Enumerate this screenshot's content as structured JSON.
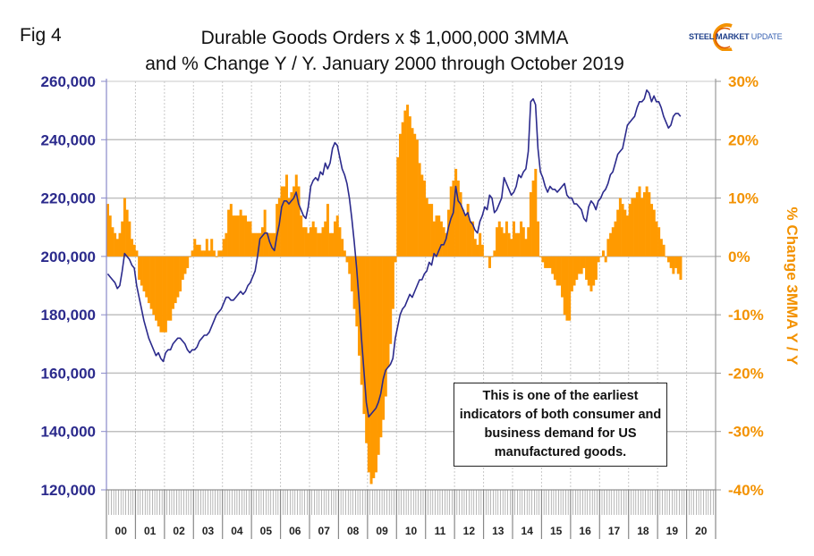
{
  "header": {
    "fig_label": "Fig 4",
    "title_line1": "Durable Goods Orders x $ 1,000,000 3MMA",
    "title_line2": "and % Change Y / Y. January 2000 through October 2019"
  },
  "logo": {
    "part1": "STEEL",
    "part2": "MARKET",
    "part3": "UPDATE",
    "swoosh_color": "#f39200",
    "text_color": "#1f3f8a"
  },
  "annotation": "This is one of the earliest indicators of both consumer and business demand for US manufactured goods.",
  "colors": {
    "line": "#2b2a8c",
    "bars": "#ff9a00",
    "left_axis_text": "#2b2a8c",
    "right_axis_text": "#f39200",
    "grid": "#c0c0c0"
  },
  "chart_data": {
    "type": "bar+line",
    "title": "Durable Goods Orders x $ 1,000,000 3MMA and % Change Y / Y. January 2000 through October 2019",
    "xlabel": "",
    "ylabel_left": "",
    "ylabel_right": "% Change 3MMA Y / Y",
    "x_start": "2000-01",
    "x_end": "2019-10",
    "frequency": "monthly",
    "x_tick_labels": [
      "00",
      "01",
      "02",
      "03",
      "04",
      "05",
      "06",
      "07",
      "08",
      "09",
      "10",
      "11",
      "12",
      "13",
      "14",
      "15",
      "16",
      "17",
      "18",
      "19",
      "20"
    ],
    "ylim_left": [
      120000,
      260000
    ],
    "yticks_left": [
      "120,000",
      "140,000",
      "160,000",
      "180,000",
      "200,000",
      "220,000",
      "240,000",
      "260,000"
    ],
    "ylim_right": [
      -40,
      30
    ],
    "yticks_right": [
      "-40%",
      "-30%",
      "-20%",
      "-10%",
      "0%",
      "10%",
      "20%",
      "30%"
    ],
    "grid": true,
    "series": [
      {
        "name": "Durable Goods Orders 3MMA ($M)",
        "type": "line",
        "axis": "left",
        "values": [
          194000,
          193000,
          192000,
          191000,
          189000,
          190000,
          195000,
          201000,
          200000,
          199000,
          197000,
          196000,
          190000,
          186000,
          182000,
          178000,
          175000,
          172000,
          170000,
          168000,
          166000,
          167000,
          165000,
          164000,
          167000,
          168000,
          168000,
          170000,
          171000,
          172000,
          172000,
          171000,
          170000,
          168000,
          167000,
          168000,
          168000,
          169000,
          171000,
          172000,
          173000,
          173000,
          174000,
          176000,
          178000,
          180000,
          181000,
          182000,
          184000,
          186000,
          186000,
          185000,
          185000,
          186000,
          187000,
          188000,
          187000,
          188000,
          190000,
          191000,
          193000,
          195000,
          200000,
          206000,
          207000,
          208000,
          208000,
          205000,
          203000,
          202000,
          207000,
          211000,
          217000,
          219000,
          219000,
          218000,
          219000,
          220000,
          222000,
          218000,
          216000,
          214000,
          213000,
          217000,
          224000,
          226000,
          227000,
          226000,
          229000,
          228000,
          232000,
          230000,
          232000,
          237000,
          239000,
          238000,
          234000,
          230000,
          228000,
          225000,
          220000,
          213000,
          205000,
          196000,
          185000,
          172000,
          161000,
          150000,
          145000,
          146000,
          147000,
          148000,
          150000,
          153000,
          158000,
          161000,
          162000,
          163000,
          165000,
          172000,
          176000,
          180000,
          182000,
          183000,
          185000,
          187000,
          186000,
          188000,
          190000,
          192000,
          192000,
          194000,
          195000,
          198000,
          197000,
          201000,
          200000,
          202000,
          204000,
          204000,
          206000,
          210000,
          213000,
          215000,
          224000,
          219000,
          218000,
          216000,
          214000,
          215000,
          212000,
          211000,
          209000,
          208000,
          212000,
          214000,
          217000,
          216000,
          221000,
          220000,
          215000,
          216000,
          218000,
          220000,
          227000,
          225000,
          223000,
          221000,
          222000,
          224000,
          228000,
          227000,
          229000,
          230000,
          236000,
          253000,
          254000,
          252000,
          237000,
          229000,
          227000,
          224000,
          222000,
          224000,
          223000,
          223000,
          222000,
          223000,
          224000,
          225000,
          221000,
          220000,
          220000,
          218000,
          218000,
          217000,
          216000,
          213000,
          212000,
          217000,
          219000,
          218000,
          216000,
          219000,
          220000,
          222000,
          223000,
          225000,
          228000,
          229000,
          232000,
          235000,
          236000,
          237000,
          241000,
          245000,
          246000,
          247000,
          248000,
          251000,
          253000,
          253000,
          254000,
          257000,
          256000,
          253000,
          255000,
          253000,
          253000,
          251000,
          248000,
          246000,
          244000,
          245000,
          248000,
          249000,
          249000,
          248000
        ]
      },
      {
        "name": "% Change 3MMA Y / Y",
        "type": "bar",
        "axis": "right",
        "values": [
          9,
          7,
          5,
          4,
          3,
          4,
          6,
          10,
          8,
          6,
          3,
          2,
          1,
          -4,
          -5,
          -6,
          -7,
          -8,
          -9,
          -10,
          -11,
          -12,
          -13,
          -13,
          -13,
          -11,
          -11,
          -9,
          -8,
          -7,
          -6,
          -4,
          -3,
          -2,
          0,
          1,
          3,
          2,
          2,
          1,
          1,
          3,
          1,
          3,
          1,
          0,
          1,
          1,
          3,
          4,
          8,
          9,
          7,
          7,
          7,
          8,
          7,
          7,
          6,
          6,
          4,
          4,
          4,
          4,
          5,
          8,
          4,
          4,
          4,
          4,
          9,
          10,
          12,
          12,
          14,
          10,
          11,
          12,
          14,
          12,
          7,
          5,
          5,
          4,
          5,
          6,
          5,
          4,
          4,
          5,
          6,
          9,
          4,
          4,
          6,
          7,
          5,
          3,
          1,
          -1,
          -3,
          -6,
          -9,
          -12,
          -17,
          -22,
          -27,
          -32,
          -37,
          -39,
          -38,
          -37,
          -34,
          -31,
          -28,
          -24,
          -19,
          -15,
          -9,
          -1,
          17,
          21,
          23,
          25,
          26,
          24,
          22,
          21,
          20,
          16,
          14,
          13,
          10,
          9,
          9,
          6,
          7,
          7,
          6,
          5,
          4,
          8,
          12,
          13,
          15,
          13,
          11,
          8,
          7,
          9,
          6,
          6,
          3,
          2,
          4,
          2,
          0,
          0,
          -2,
          0,
          1,
          5,
          6,
          5,
          4,
          6,
          4,
          3,
          6,
          4,
          4,
          6,
          5,
          3,
          5,
          11,
          13,
          15,
          6,
          0,
          -1,
          -2,
          -2,
          -2,
          -3,
          -4,
          -5,
          -5,
          -7,
          -10,
          -11,
          -11,
          -6,
          -5,
          -4,
          -3,
          -3,
          -2,
          -4,
          -5,
          -6,
          -5,
          -4,
          -1,
          0,
          1,
          -1,
          3,
          4,
          5,
          6,
          8,
          10,
          9,
          8,
          7,
          9,
          10,
          10,
          11,
          12,
          10,
          11,
          12,
          11,
          9,
          8,
          6,
          5,
          3,
          2,
          0,
          -1,
          -2,
          -3,
          -2,
          -3,
          -4
        ]
      }
    ]
  }
}
